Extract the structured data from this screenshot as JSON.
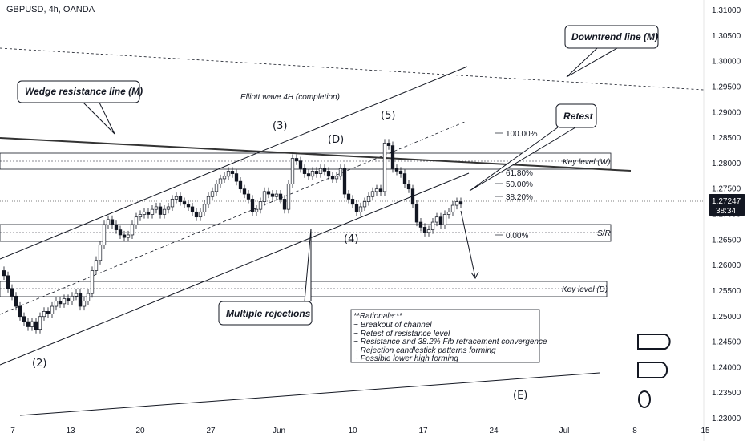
{
  "header": {
    "symbol": "GBPUSD, 4h, OANDA"
  },
  "price_tag": {
    "price": "1.27247",
    "countdown": "38:34"
  },
  "chart_data": {
    "type": "candlestick",
    "title": "GBPUSD, 4h, OANDA",
    "ylim": [
      1.23,
      1.31
    ],
    "y_ticks": [
      "1.31000",
      "1.30500",
      "1.30000",
      "1.29500",
      "1.29000",
      "1.28500",
      "1.28000",
      "1.27500",
      "1.27000",
      "1.26500",
      "1.26000",
      "1.25500",
      "1.25000",
      "1.24500",
      "1.24000",
      "1.23500",
      "1.23000"
    ],
    "x_ticks": [
      "7",
      "13",
      "20",
      "27",
      "Jun",
      "10",
      "17",
      "24",
      "Jul",
      "8",
      "15"
    ],
    "last_price": 1.27247,
    "price_path": [
      [
        0,
        1.259
      ],
      [
        5,
        1.258
      ],
      [
        10,
        1.2555
      ],
      [
        15,
        1.254
      ],
      [
        20,
        1.252
      ],
      [
        25,
        1.25
      ],
      [
        30,
        1.249
      ],
      [
        35,
        1.248
      ],
      [
        40,
        1.249
      ],
      [
        45,
        1.2475
      ],
      [
        50,
        1.25
      ],
      [
        55,
        1.251
      ],
      [
        60,
        1.2505
      ],
      [
        65,
        1.252
      ],
      [
        70,
        1.253
      ],
      [
        75,
        1.2525
      ],
      [
        80,
        1.2535
      ],
      [
        85,
        1.253
      ],
      [
        90,
        1.254
      ],
      [
        95,
        1.2545
      ],
      [
        100,
        1.252
      ],
      [
        105,
        1.253
      ],
      [
        110,
        1.2545
      ],
      [
        115,
        1.259
      ],
      [
        120,
        1.261
      ],
      [
        125,
        1.264
      ],
      [
        130,
        1.268
      ],
      [
        135,
        1.269
      ],
      [
        140,
        1.268
      ],
      [
        145,
        1.267
      ],
      [
        150,
        1.266
      ],
      [
        155,
        1.2655
      ],
      [
        160,
        1.266
      ],
      [
        165,
        1.268
      ],
      [
        170,
        1.2695
      ],
      [
        175,
        1.27
      ],
      [
        180,
        1.2705
      ],
      [
        185,
        1.27
      ],
      [
        190,
        1.271
      ],
      [
        195,
        1.2715
      ],
      [
        200,
        1.27
      ],
      [
        205,
        1.271
      ],
      [
        210,
        1.2715
      ],
      [
        215,
        1.273
      ],
      [
        220,
        1.2735
      ],
      [
        225,
        1.2725
      ],
      [
        230,
        1.272
      ],
      [
        235,
        1.2715
      ],
      [
        240,
        1.2705
      ],
      [
        245,
        1.2695
      ],
      [
        250,
        1.2705
      ],
      [
        255,
        1.272
      ],
      [
        260,
        1.2735
      ],
      [
        265,
        1.2745
      ],
      [
        270,
        1.276
      ],
      [
        275,
        1.277
      ],
      [
        280,
        1.2775
      ],
      [
        285,
        1.2785
      ],
      [
        290,
        1.278
      ],
      [
        295,
        1.2765
      ],
      [
        300,
        1.275
      ],
      [
        305,
        1.274
      ],
      [
        310,
        1.273
      ],
      [
        315,
        1.2705
      ],
      [
        320,
        1.271
      ],
      [
        325,
        1.2725
      ],
      [
        330,
        1.2745
      ],
      [
        335,
        1.274
      ],
      [
        340,
        1.2735
      ],
      [
        345,
        1.274
      ],
      [
        350,
        1.273
      ],
      [
        355,
        1.271
      ],
      [
        360,
        1.276
      ],
      [
        365,
        1.281
      ],
      [
        370,
        1.2805
      ],
      [
        375,
        1.279
      ],
      [
        380,
        1.278
      ],
      [
        385,
        1.2775
      ],
      [
        390,
        1.2785
      ],
      [
        395,
        1.278
      ],
      [
        400,
        1.279
      ],
      [
        405,
        1.2785
      ],
      [
        410,
        1.2775
      ],
      [
        415,
        1.277
      ],
      [
        420,
        1.2775
      ],
      [
        425,
        1.279
      ],
      [
        430,
        1.274
      ],
      [
        435,
        1.273
      ],
      [
        440,
        1.272
      ],
      [
        445,
        1.2705
      ],
      [
        450,
        1.2715
      ],
      [
        455,
        1.2725
      ],
      [
        460,
        1.2735
      ],
      [
        465,
        1.2745
      ],
      [
        470,
        1.275
      ],
      [
        475,
        1.2745
      ],
      [
        480,
        1.284
      ],
      [
        485,
        1.2835
      ],
      [
        490,
        1.279
      ],
      [
        495,
        1.2785
      ],
      [
        500,
        1.278
      ],
      [
        505,
        1.276
      ],
      [
        510,
        1.275
      ],
      [
        515,
        1.272
      ],
      [
        520,
        1.2685
      ],
      [
        525,
        1.2675
      ],
      [
        530,
        1.2665
      ],
      [
        535,
        1.267
      ],
      [
        540,
        1.2685
      ],
      [
        545,
        1.2695
      ],
      [
        550,
        1.268
      ],
      [
        555,
        1.27
      ],
      [
        560,
        1.2705
      ],
      [
        565,
        1.2718
      ],
      [
        570,
        1.2725
      ],
      [
        575,
        1.272
      ]
    ],
    "horizontal_zones": [
      {
        "label": "Key level (W)",
        "low": 1.279,
        "high": 1.2808
      },
      {
        "label": "S/R",
        "low": 1.2648,
        "high": 1.2663
      },
      {
        "label": "Key level (D)",
        "low": 1.2551,
        "high": 1.2562
      }
    ],
    "fib_levels": [
      "100.00%",
      "61.80%",
      "50.00%",
      "38.20%",
      "0.00%"
    ],
    "wave_labels": [
      "(2)",
      "(3)",
      "(D)",
      "(5)",
      "(4)",
      "(E)"
    ],
    "annotations": {
      "elliott_text": "Elliott wave 4H (completion)",
      "wedge": "Wedge resistance line (M)",
      "downtrend": "Downtrend line (M)",
      "retest": "Retest",
      "rejections": "Multiple rejections"
    },
    "rationale": {
      "title": "**Rationale:**",
      "lines": [
        "~ Breakout of channel",
        "~ Retest of resistance level",
        "~ Resistance and 38.2% Fib retracement convergence",
        "~ Rejection candlestick patterns forming",
        "~ Possible lower high forming"
      ]
    }
  }
}
